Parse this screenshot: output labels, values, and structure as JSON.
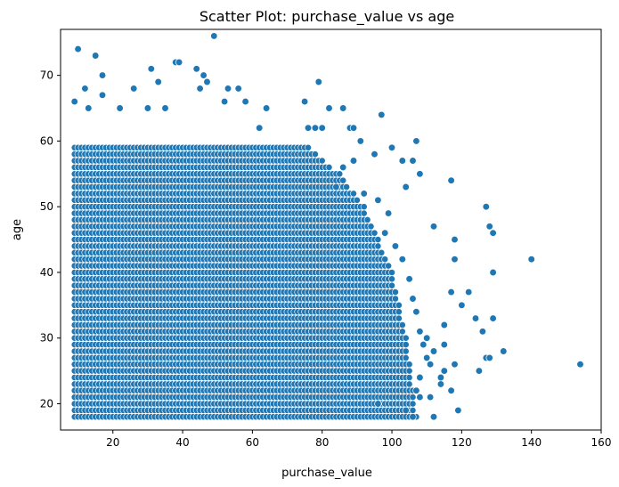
{
  "chart_data": {
    "type": "scatter",
    "title": "Scatter Plot: purchase_value vs age",
    "xlabel": "purchase_value",
    "ylabel": "age",
    "xlim": [
      5,
      160
    ],
    "ylim": [
      16,
      77
    ],
    "xticks": [
      20,
      40,
      60,
      80,
      100,
      120,
      140,
      160
    ],
    "yticks": [
      20,
      30,
      40,
      50,
      60,
      70
    ],
    "grid": false,
    "marker_color": "#1f77b4",
    "dense_region": {
      "x_min": 9,
      "y_min": 18,
      "y_max": 59,
      "x_max_at_age": [
        [
          18,
          107
        ],
        [
          30,
          104
        ],
        [
          40,
          100
        ],
        [
          50,
          92
        ],
        [
          55,
          85
        ],
        [
          59,
          76
        ]
      ]
    },
    "points": [
      [
        10,
        74
      ],
      [
        15,
        73
      ],
      [
        49,
        76
      ],
      [
        17,
        70
      ],
      [
        31,
        71
      ],
      [
        38,
        72
      ],
      [
        39,
        72
      ],
      [
        44,
        71
      ],
      [
        46,
        70
      ],
      [
        47,
        69
      ],
      [
        79,
        69
      ],
      [
        9,
        66
      ],
      [
        12,
        68
      ],
      [
        26,
        68
      ],
      [
        33,
        69
      ],
      [
        45,
        68
      ],
      [
        53,
        68
      ],
      [
        56,
        68
      ],
      [
        75,
        66
      ],
      [
        52,
        66
      ],
      [
        58,
        66
      ],
      [
        13,
        65
      ],
      [
        17,
        67
      ],
      [
        22,
        65
      ],
      [
        30,
        65
      ],
      [
        35,
        65
      ],
      [
        64,
        65
      ],
      [
        82,
        65
      ],
      [
        86,
        65
      ],
      [
        62,
        62
      ],
      [
        97,
        64
      ],
      [
        91,
        60
      ],
      [
        107,
        60
      ],
      [
        100,
        59
      ],
      [
        103,
        57
      ],
      [
        106,
        57
      ],
      [
        108,
        55
      ],
      [
        117,
        54
      ],
      [
        104,
        53
      ],
      [
        112,
        47
      ],
      [
        118,
        45
      ],
      [
        127,
        50
      ],
      [
        128,
        47
      ],
      [
        129,
        46
      ],
      [
        118,
        42
      ],
      [
        140,
        42
      ],
      [
        129,
        40
      ],
      [
        117,
        37
      ],
      [
        122,
        37
      ],
      [
        120,
        35
      ],
      [
        124,
        33
      ],
      [
        129,
        33
      ],
      [
        126,
        31
      ],
      [
        115,
        32
      ],
      [
        110,
        30
      ],
      [
        115,
        29
      ],
      [
        112,
        28
      ],
      [
        132,
        28
      ],
      [
        127,
        27
      ],
      [
        128,
        27
      ],
      [
        111,
        26
      ],
      [
        115,
        25
      ],
      [
        118,
        26
      ],
      [
        125,
        25
      ],
      [
        114,
        23
      ],
      [
        117,
        22
      ],
      [
        154,
        26
      ],
      [
        111,
        21
      ],
      [
        114,
        24
      ],
      [
        119,
        19
      ],
      [
        112,
        18
      ],
      [
        104,
        19
      ],
      [
        108,
        21
      ],
      [
        96,
        20
      ],
      [
        88,
        62
      ],
      [
        88,
        62
      ],
      [
        89,
        62
      ],
      [
        80,
        62
      ],
      [
        78,
        62
      ],
      [
        76,
        62
      ],
      [
        95,
        58
      ],
      [
        89,
        57
      ],
      [
        86,
        56
      ],
      [
        84,
        53
      ],
      [
        92,
        52
      ],
      [
        96,
        51
      ],
      [
        99,
        49
      ],
      [
        98,
        46
      ],
      [
        101,
        44
      ],
      [
        103,
        42
      ],
      [
        105,
        39
      ],
      [
        106,
        36
      ],
      [
        107,
        34
      ],
      [
        108,
        31
      ],
      [
        109,
        29
      ],
      [
        110,
        27
      ],
      [
        108,
        24
      ],
      [
        107,
        22
      ],
      [
        106,
        18
      ]
    ]
  }
}
